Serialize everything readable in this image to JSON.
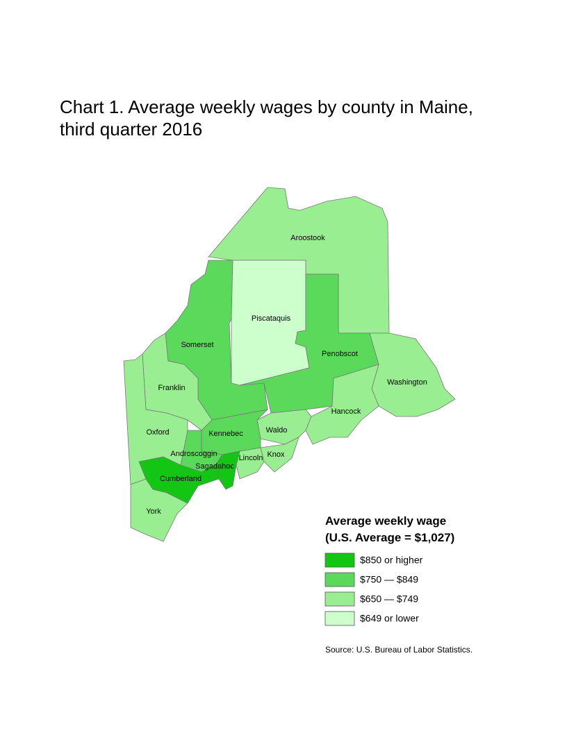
{
  "title": "Chart 1. Average weekly wages by county in Maine,",
  "title_line2": "third quarter 2016",
  "counties": [
    {
      "name": "Aroostook",
      "color": "#99ee91"
    },
    {
      "name": "Somerset",
      "color": "#5bd95b"
    },
    {
      "name": "Piscataquis",
      "color": "#ccffcc"
    },
    {
      "name": "Penobscot",
      "color": "#5bd95b"
    },
    {
      "name": "Washington",
      "color": "#99ee91"
    },
    {
      "name": "Hancock",
      "color": "#99ee91"
    },
    {
      "name": "Waldo",
      "color": "#99ee91"
    },
    {
      "name": "Knox",
      "color": "#99ee91"
    },
    {
      "name": "Lincoln",
      "color": "#99ee91"
    },
    {
      "name": "Kennebec",
      "color": "#5bd95b"
    },
    {
      "name": "Sagadahoc",
      "color": "#13c613"
    },
    {
      "name": "Androscoggin",
      "color": "#5bd95b"
    },
    {
      "name": "Cumberland",
      "color": "#13c613"
    },
    {
      "name": "Franklin",
      "color": "#99ee91"
    },
    {
      "name": "Oxford",
      "color": "#99ee91"
    },
    {
      "name": "York",
      "color": "#99ee91"
    }
  ],
  "legend": {
    "title": "Average weekly wage",
    "subtitle": "(U.S. Average = $1,027)",
    "items": [
      {
        "label": "$850 or higher",
        "color": "#13c613"
      },
      {
        "label": "$750 — $849",
        "color": "#5bd95b"
      },
      {
        "label": "$650 — $749",
        "color": "#99ee91"
      },
      {
        "label": "$649 or lower",
        "color": "#ccffcc"
      }
    ]
  },
  "source": "Source: U.S. Bureau of Labor Statistics."
}
